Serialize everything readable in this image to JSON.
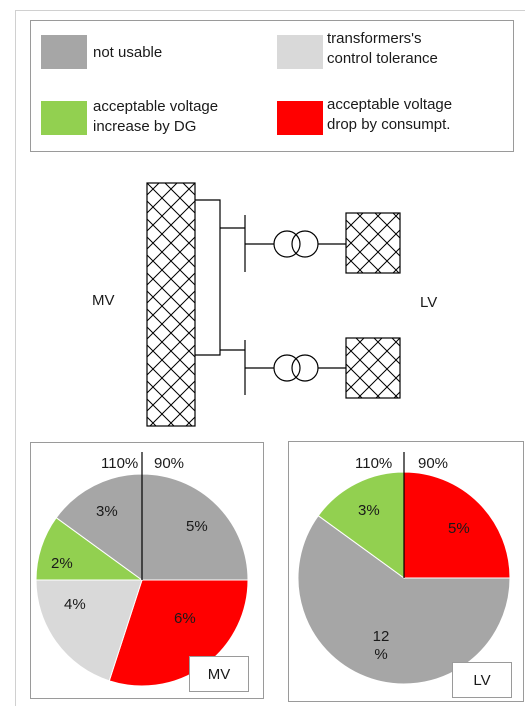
{
  "legend": {
    "items": [
      {
        "label": "not usable",
        "color": "#a6a6a6"
      },
      {
        "label": "transformers's control tolerance",
        "color": "#d9d9d9"
      },
      {
        "label": "acceptable voltage increase by DG",
        "color": "#92d050"
      },
      {
        "label": "acceptable voltage drop by consumpt.",
        "color": "#ff0000"
      }
    ],
    "lines": [
      [
        "not usable"
      ],
      [
        "transformers's",
        "control tolerance"
      ],
      [
        "acceptable voltage",
        "increase by DG"
      ],
      [
        "acceptable voltage",
        "drop by consumpt."
      ]
    ]
  },
  "diagram": {
    "mv_label": "MV",
    "lv_label": "LV"
  },
  "chart_data": [
    {
      "type": "pie",
      "box_label": "MV",
      "top_labels": [
        "110%",
        "90%"
      ],
      "slices": [
        {
          "label": "5%",
          "value": 5,
          "color": "#a6a6a6"
        },
        {
          "label": "6%",
          "value": 6,
          "color": "#ff0000"
        },
        {
          "label": "4%",
          "value": 4,
          "color": "#d9d9d9"
        },
        {
          "label": "2%",
          "value": 2,
          "color": "#92d050"
        },
        {
          "label": "3%",
          "value": 3,
          "color": "#a6a6a6"
        }
      ]
    },
    {
      "type": "pie",
      "box_label": "LV",
      "top_labels": [
        "110%",
        "90%"
      ],
      "slices": [
        {
          "label": "5%",
          "value": 5,
          "color": "#ff0000"
        },
        {
          "label": "12 %",
          "label_lines": [
            "12",
            "%"
          ],
          "value": 12,
          "color": "#a6a6a6"
        },
        {
          "label": "3%",
          "value": 3,
          "color": "#92d050"
        }
      ]
    }
  ]
}
